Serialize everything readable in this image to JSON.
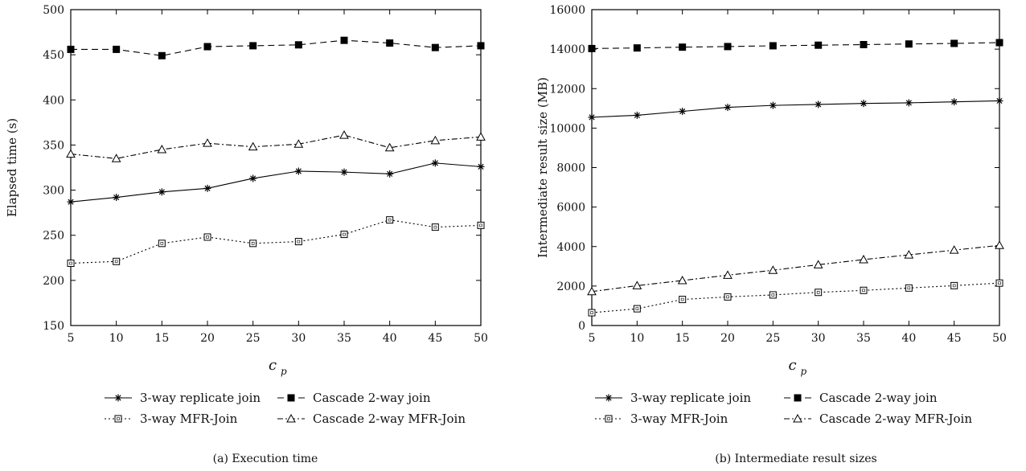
{
  "chart_data": [
    {
      "type": "line",
      "caption": "(a)  Execution time",
      "xlabel": "c",
      "xlabel_sub": "p",
      "ylabel": "Elapsed time (s)",
      "x": [
        5,
        10,
        15,
        20,
        25,
        30,
        35,
        40,
        45,
        50
      ],
      "xticks": [
        "5",
        "10",
        "15",
        "20",
        "25",
        "30",
        "35",
        "40",
        "45",
        "50"
      ],
      "yticks": [
        "150",
        "200",
        "250",
        "300",
        "350",
        "400",
        "450",
        "500"
      ],
      "xlim": [
        5,
        50
      ],
      "ylim": [
        150,
        500
      ],
      "grid": false,
      "legend": "bottom",
      "series": [
        {
          "name": "3-way replicate join",
          "marker": "asterisk",
          "dash": "solid",
          "values": [
            287,
            292,
            298,
            302,
            313,
            321,
            320,
            318,
            330,
            326
          ]
        },
        {
          "name": "Cascade 2-way join",
          "marker": "filled-square",
          "dash": "dashed",
          "values": [
            456,
            456,
            449,
            459,
            460,
            461,
            466,
            463,
            458,
            460
          ]
        },
        {
          "name": "3-way MFR-Join",
          "marker": "open-square",
          "dash": "dotted",
          "values": [
            219,
            221,
            241,
            248,
            241,
            243,
            251,
            267,
            259,
            261
          ]
        },
        {
          "name": "Cascade 2-way MFR-Join",
          "marker": "open-triangle",
          "dash": "dashdot",
          "values": [
            340,
            335,
            345,
            352,
            348,
            351,
            361,
            347,
            355,
            359
          ]
        }
      ]
    },
    {
      "type": "line",
      "caption": "(b)  Intermediate result sizes",
      "xlabel": "c",
      "xlabel_sub": "p",
      "ylabel": "Intermediate result size (MB)",
      "x": [
        5,
        10,
        15,
        20,
        25,
        30,
        35,
        40,
        45,
        50
      ],
      "xticks": [
        "5",
        "10",
        "15",
        "20",
        "25",
        "30",
        "35",
        "40",
        "45",
        "50"
      ],
      "yticks": [
        "0",
        "2000",
        "4000",
        "6000",
        "8000",
        "10000",
        "12000",
        "14000",
        "16000"
      ],
      "xlim": [
        5,
        50
      ],
      "ylim": [
        0,
        16000
      ],
      "grid": false,
      "legend": "bottom",
      "series": [
        {
          "name": "3-way replicate join",
          "marker": "asterisk",
          "dash": "solid",
          "values": [
            10550,
            10650,
            10850,
            11050,
            11150,
            11200,
            11250,
            11280,
            11330,
            11380
          ]
        },
        {
          "name": "Cascade 2-way join",
          "marker": "filled-square",
          "dash": "dashed",
          "values": [
            14030,
            14060,
            14100,
            14130,
            14170,
            14200,
            14230,
            14260,
            14290,
            14330
          ]
        },
        {
          "name": "3-way MFR-Join",
          "marker": "open-square",
          "dash": "dotted",
          "values": [
            650,
            850,
            1320,
            1450,
            1550,
            1680,
            1780,
            1900,
            2020,
            2150
          ]
        },
        {
          "name": "Cascade 2-way MFR-Join",
          "marker": "open-triangle",
          "dash": "dashdot",
          "values": [
            1720,
            2020,
            2280,
            2550,
            2800,
            3080,
            3340,
            3580,
            3820,
            4060
          ]
        }
      ]
    }
  ]
}
